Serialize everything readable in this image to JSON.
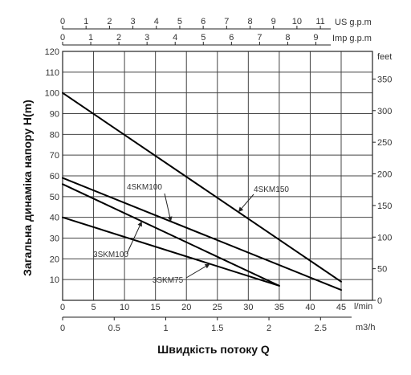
{
  "chart_data": {
    "type": "line",
    "ylabel": "Загальна динаміка напору H(m)",
    "xlabel": "Швидкість потоку Q",
    "grid": true,
    "colors": {
      "line": "#000000",
      "grid": "#444444",
      "text": "#333333"
    },
    "x_axis": {
      "unit": "l/min",
      "range": [
        0,
        45
      ],
      "ticks": [
        0,
        5,
        10,
        15,
        20,
        25,
        30,
        35,
        40,
        45
      ]
    },
    "y_axis": {
      "unit": "",
      "range": [
        0,
        120
      ],
      "ticks": [
        0,
        10,
        20,
        30,
        40,
        50,
        60,
        70,
        80,
        90,
        100,
        110,
        120
      ]
    },
    "y_axis_right": {
      "unit": "feet",
      "ticks": [
        0,
        50,
        100,
        150,
        200,
        250,
        300,
        350
      ]
    },
    "x_axis_m3h": {
      "unit": "m3/h",
      "ticks": [
        "0",
        "0.5",
        "1",
        "1.5",
        "2",
        "2.5"
      ],
      "values": [
        0,
        0.5,
        1,
        1.5,
        2,
        2.5
      ]
    },
    "x_axis_us_gpm": {
      "unit": "US g.p.m",
      "ticks": [
        "0",
        "1",
        "2",
        "3",
        "4",
        "5",
        "6",
        "7",
        "8",
        "9",
        "10",
        "11"
      ]
    },
    "x_axis_imp_gpm": {
      "unit": "Imp g.p.m",
      "ticks": [
        "0",
        "1",
        "2",
        "3",
        "4",
        "5",
        "6",
        "7",
        "8",
        "9"
      ]
    },
    "series": [
      {
        "name": "4SKM150",
        "x": [
          0,
          45
        ],
        "y": [
          100,
          9
        ]
      },
      {
        "name": "4SKM100",
        "x": [
          0,
          45
        ],
        "y": [
          59,
          5
        ]
      },
      {
        "name": "3SKM100",
        "x": [
          0,
          35
        ],
        "y": [
          56,
          7
        ]
      },
      {
        "name": "3SKM75",
        "x": [
          0,
          35
        ],
        "y": [
          40,
          7
        ]
      }
    ]
  }
}
